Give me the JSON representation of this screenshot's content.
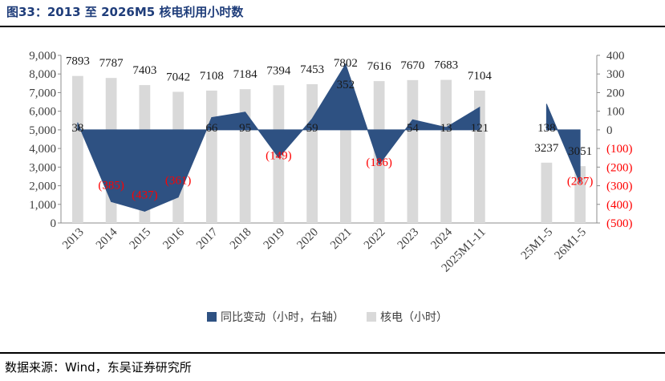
{
  "title": "图33：2013 至 2026M5 核电利用小时数",
  "source": "数据来源：Wind，东吴证券研究所",
  "colors": {
    "bar": "#d9d9d9",
    "area": "#2e5182",
    "negative_label": "#ff0000",
    "label": "#1a1a1a"
  },
  "chart_data": {
    "type": "bar",
    "categories": [
      "2013",
      "2014",
      "2015",
      "2016",
      "2017",
      "2018",
      "2019",
      "2020",
      "2021",
      "2022",
      "2023",
      "2024",
      "2025M1-11",
      "",
      "25M1-5",
      "26M1-5"
    ],
    "series": [
      {
        "name": "同比变动（小时，右轴）",
        "type": "area",
        "axis": "right",
        "values": [
          38,
          -385,
          -437,
          -361,
          66,
          95,
          -149,
          59,
          352,
          -186,
          54,
          13,
          121,
          null,
          138,
          -287
        ],
        "labels": [
          "38",
          "(385)",
          "(437)",
          "(361)",
          "66",
          "95",
          "(149)",
          "59",
          "352",
          "(186)",
          "54",
          "13",
          "121",
          "",
          "138",
          "(287)"
        ]
      },
      {
        "name": "核电（小时）",
        "type": "bar",
        "axis": "left",
        "values": [
          7893,
          7787,
          7403,
          7042,
          7108,
          7184,
          7394,
          7453,
          7802,
          7616,
          7670,
          7683,
          7104,
          null,
          3237,
          3051
        ],
        "labels": [
          "7893",
          "7787",
          "7403",
          "7042",
          "7108",
          "7184",
          "7394",
          "7453",
          "7802",
          "7616",
          "7670",
          "7683",
          "7104",
          "",
          "3237",
          "3051"
        ]
      }
    ],
    "ylim_left": [
      0,
      9000
    ],
    "yticks_left": [
      "0",
      "1,000",
      "2,000",
      "3,000",
      "4,000",
      "5,000",
      "6,000",
      "7,000",
      "8,000",
      "9,000"
    ],
    "ylim_right": [
      -500,
      400
    ],
    "yticks_right": [
      "(500)",
      "(400)",
      "(300)",
      "(200)",
      "(100)",
      "0",
      "100",
      "200",
      "300",
      "400"
    ],
    "grid": false,
    "legend_position": "bottom"
  }
}
